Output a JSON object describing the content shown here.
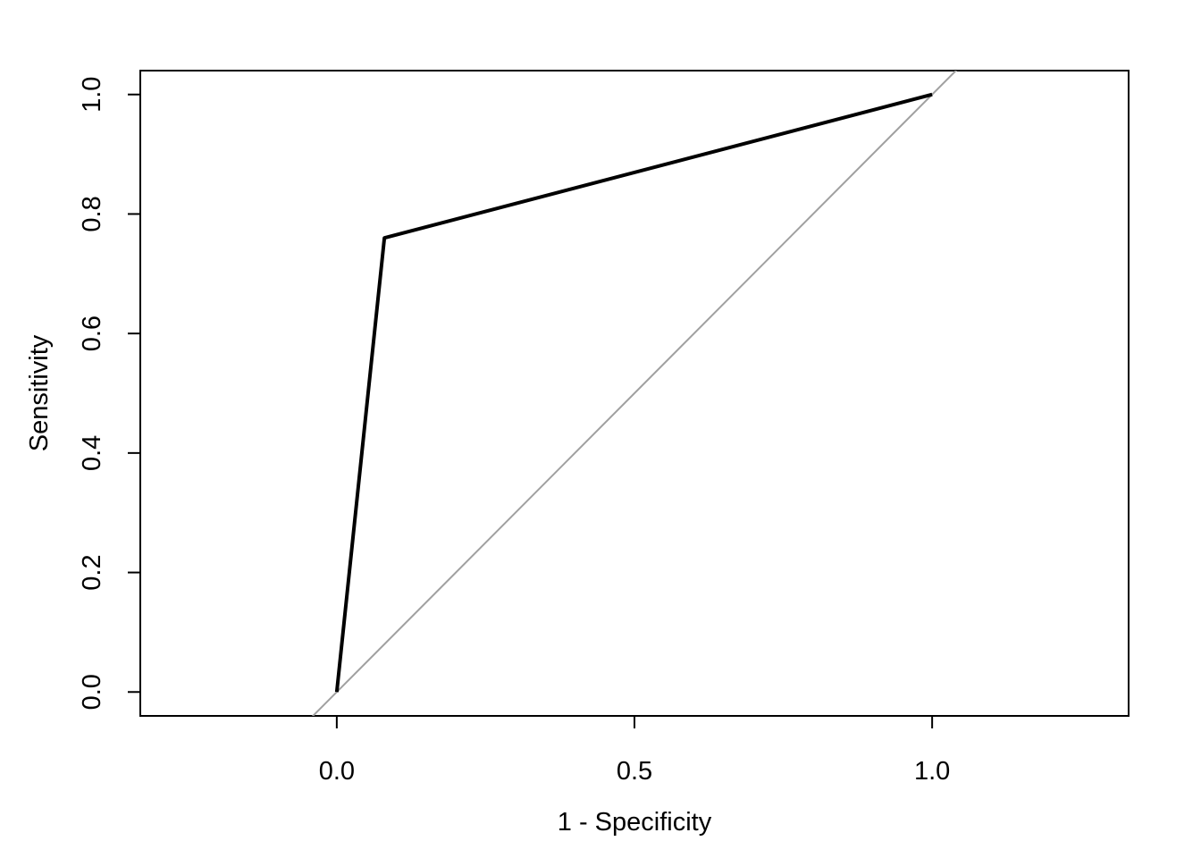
{
  "chart_data": {
    "type": "line",
    "title": "",
    "xlabel": "1 - Specificity",
    "ylabel": "Sensitivity",
    "xlim": [
      -0.33,
      1.33
    ],
    "ylim": [
      -0.04,
      1.04
    ],
    "x_ticks": [
      0.0,
      0.5,
      1.0
    ],
    "x_tick_labels": [
      "0.0",
      "0.5",
      "1.0"
    ],
    "y_ticks": [
      0.0,
      0.2,
      0.4,
      0.6,
      0.8,
      1.0
    ],
    "y_tick_labels": [
      "0.0",
      "0.2",
      "0.4",
      "0.6",
      "0.8",
      "1.0"
    ],
    "grid": false,
    "series": [
      {
        "color": "#000000",
        "x": [
          0.0,
          0.08,
          1.0
        ],
        "y": [
          0.0,
          0.76,
          1.0
        ]
      }
    ],
    "reference_line": {
      "type": "diagonal",
      "intercept": 0,
      "slope": 1,
      "color": "#a0a0a0"
    }
  }
}
